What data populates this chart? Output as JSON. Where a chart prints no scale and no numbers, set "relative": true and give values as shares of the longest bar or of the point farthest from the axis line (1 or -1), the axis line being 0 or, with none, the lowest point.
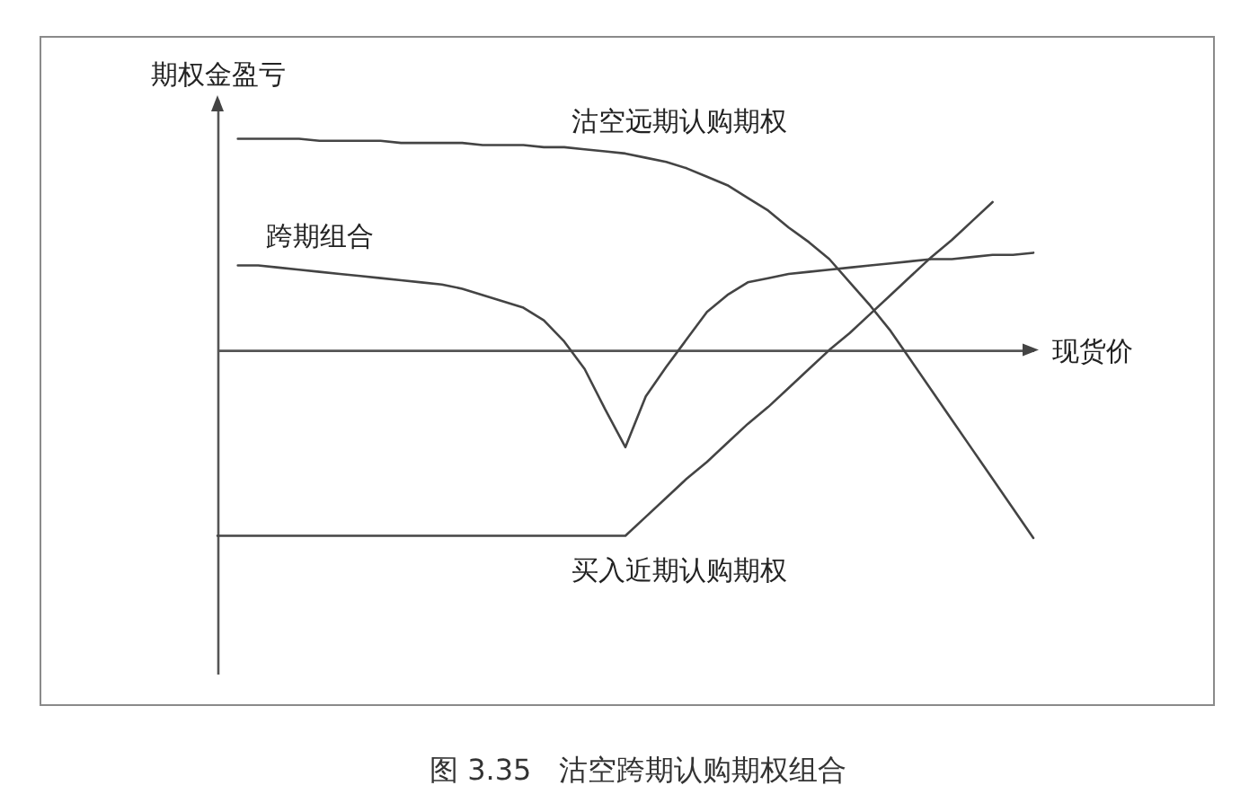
{
  "chart_data": {
    "type": "line",
    "title": "图 3.35   沽空跨期认购期权组合",
    "xlabel": "现货价",
    "ylabel": "期权金盈亏",
    "relative": true,
    "tick_labels": false,
    "grid": false,
    "legend": false,
    "marker": "none",
    "line_style": "solid",
    "categories": [
      null,
      null,
      null,
      null,
      null,
      null,
      null,
      null,
      null,
      null,
      null,
      null,
      null,
      null,
      null,
      null,
      null,
      null,
      null,
      null,
      null,
      null,
      null,
      null,
      null,
      null,
      null,
      null,
      null,
      null,
      null,
      null,
      null,
      null,
      null,
      null,
      null,
      null,
      null,
      null,
      null
    ],
    "series": [
      {
        "name": "沽空远期认购期权",
        "color": "#444444",
        "values": [
          null,
          1.0,
          1.0,
          1.0,
          1.0,
          0.99,
          0.99,
          0.99,
          0.99,
          0.98,
          0.98,
          0.98,
          0.98,
          0.97,
          0.97,
          0.97,
          0.96,
          0.96,
          0.95,
          0.94,
          0.93,
          0.91,
          0.89,
          0.86,
          0.82,
          0.78,
          0.72,
          0.66,
          0.58,
          0.51,
          0.43,
          0.32,
          0.21,
          0.09,
          -0.05,
          -0.19,
          -0.33,
          -0.47,
          -0.61,
          -0.75,
          -0.89
        ]
      },
      {
        "name": "跨期组合",
        "color": "#444444",
        "values": [
          null,
          0.4,
          0.4,
          0.39,
          0.38,
          0.37,
          0.36,
          0.35,
          0.34,
          0.33,
          0.32,
          0.31,
          0.29,
          0.26,
          0.23,
          0.2,
          0.14,
          0.04,
          -0.09,
          -0.28,
          -0.46,
          -0.22,
          -0.08,
          0.05,
          0.18,
          0.26,
          0.32,
          0.34,
          0.36,
          0.37,
          0.38,
          0.39,
          0.4,
          0.41,
          0.42,
          0.43,
          0.43,
          0.44,
          0.45,
          0.45,
          0.46
        ]
      },
      {
        "name": "买入近期认购期权",
        "color": "#444444",
        "values": [
          -0.88,
          -0.88,
          -0.88,
          -0.88,
          -0.88,
          -0.88,
          -0.88,
          -0.88,
          -0.88,
          -0.88,
          -0.88,
          -0.88,
          -0.88,
          -0.88,
          -0.88,
          -0.88,
          -0.88,
          -0.88,
          -0.88,
          -0.88,
          -0.88,
          -0.79,
          -0.7,
          -0.61,
          -0.53,
          -0.44,
          -0.35,
          -0.27,
          -0.18,
          -0.09,
          0.0,
          0.08,
          0.17,
          0.26,
          0.35,
          0.44,
          0.52,
          0.61,
          0.7,
          null,
          null
        ]
      }
    ]
  }
}
